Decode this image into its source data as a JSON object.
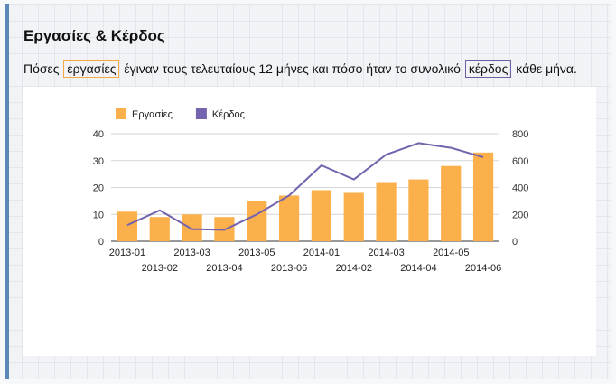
{
  "header": {
    "title": "Εργασίες & Κέρδος"
  },
  "description": {
    "part1": "Πόσες",
    "highlight_jobs": "εργασίες",
    "part2": "έγιναν τους τελευταίους 12 μήνες και πόσο ήταν το συνολικό",
    "highlight_profit": "κέρδος",
    "part3": "κάθε μήνα."
  },
  "colors": {
    "jobs": "#fbb04b",
    "profit": "#7463ad",
    "accent": "#5b87b9"
  },
  "chart_data": {
    "type": "bar",
    "categories": [
      "2013-01",
      "2013-02",
      "2013-03",
      "2013-04",
      "2013-05",
      "2013-06",
      "2014-01",
      "2014-02",
      "2014-03",
      "2014-04",
      "2014-05",
      "2014-06"
    ],
    "series": [
      {
        "name": "Εργασίες",
        "type": "bar",
        "axis": "left",
        "color": "#fbb04b",
        "values": [
          11,
          9,
          10,
          9,
          15,
          17,
          19,
          18,
          22,
          23,
          28,
          33
        ]
      },
      {
        "name": "Κέρδος",
        "type": "line",
        "axis": "right",
        "color": "#7463ad",
        "values": [
          120,
          230,
          90,
          85,
          200,
          340,
          565,
          460,
          645,
          730,
          695,
          625
        ]
      }
    ],
    "y_left": {
      "min": 0,
      "max": 40,
      "ticks": [
        0,
        10,
        20,
        30,
        40
      ]
    },
    "y_right": {
      "min": 0,
      "max": 800,
      "ticks": [
        0,
        200,
        400,
        600,
        800
      ]
    },
    "legend_position": "top-left",
    "grid": true
  }
}
